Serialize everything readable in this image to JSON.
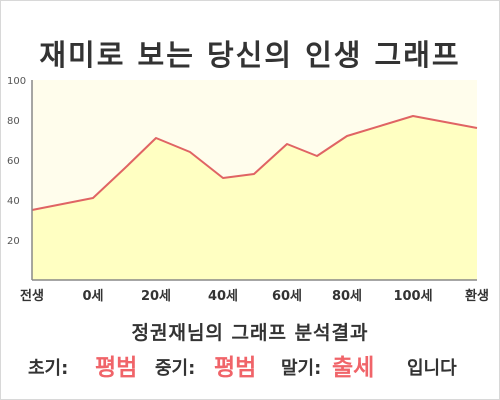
{
  "title": "재미로 보는 당신의 인생 그래프",
  "chart_data": {
    "type": "area",
    "x_categories": [
      "전생",
      "0세",
      "20세",
      "40세",
      "60세",
      "80세",
      "100세",
      "환생"
    ],
    "points": [
      {
        "x": "전생",
        "y": 35
      },
      {
        "x": "0세",
        "y": 41
      },
      {
        "x": "10세",
        "y": 56
      },
      {
        "x": "20세",
        "y": 71
      },
      {
        "x": "30세",
        "y": 64
      },
      {
        "x": "40세",
        "y": 51
      },
      {
        "x": "50세",
        "y": 53
      },
      {
        "x": "60세",
        "y": 68
      },
      {
        "x": "70세",
        "y": 62
      },
      {
        "x": "80세",
        "y": 72
      },
      {
        "x": "100세",
        "y": 82
      },
      {
        "x": "환생",
        "y": 76
      }
    ],
    "y_ticks": [
      20,
      40,
      60,
      80,
      100
    ],
    "ylim": [
      0,
      100
    ],
    "grid": false,
    "colors": {
      "line": "#e06464",
      "fill": "#ffffc2",
      "plot_bg": "#fffdec",
      "axis": "#888888"
    }
  },
  "result": {
    "heading": "정권재님의 그래프 분석결과",
    "early_label": "초기:",
    "early_value": "평범",
    "middle_label": "중기:",
    "middle_value": "평범",
    "late_label": "말기:",
    "late_value": "출세",
    "ending": "입니다"
  }
}
